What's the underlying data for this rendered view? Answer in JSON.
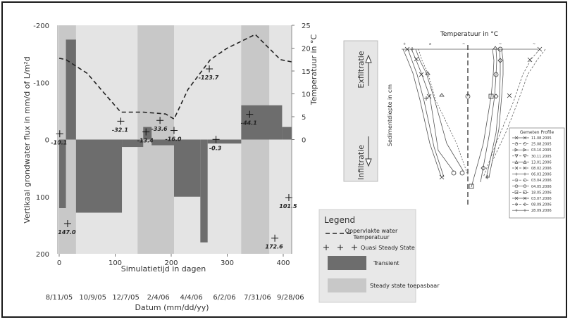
{
  "chart_data": [
    {
      "type": "bar",
      "xlabel": "Simulatietijd in dagen",
      "xlabel2": "Datum (mm/dd/yy)",
      "ylabel": "Vertikaal grondwater flux in mm/d of L/m²d",
      "y2label": "Temperatuur in °C",
      "xlim": [
        0,
        420
      ],
      "ylim": [
        -200,
        200
      ],
      "y_inverted": true,
      "y2lim": [
        0,
        25
      ],
      "xticks": [
        0,
        100,
        200,
        300,
        400
      ],
      "yticks": [
        -200,
        -100,
        0,
        100,
        200
      ],
      "y2ticks": [
        0,
        5,
        10,
        15,
        20,
        25
      ],
      "date_ticks": [
        {
          "x": 0,
          "label": "8/11/05"
        },
        {
          "x": 60,
          "label": "10/9/05"
        },
        {
          "x": 119,
          "label": "12/7/05"
        },
        {
          "x": 177,
          "label": "2/4/06"
        },
        {
          "x": 236,
          "label": "4/4/06"
        },
        {
          "x": 295,
          "label": "6/2/06"
        },
        {
          "x": 354,
          "label": "7/31/06"
        },
        {
          "x": 413,
          "label": "9/28/06"
        }
      ],
      "steady_state_bands": [
        [
          0,
          30
        ],
        [
          140,
          205
        ],
        [
          325,
          375
        ]
      ],
      "transient_bars": [
        {
          "x0": 0,
          "x1": 12,
          "y": 120
        },
        {
          "x0": 12,
          "x1": 30,
          "y": -175
        },
        {
          "x0": 30,
          "x1": 75,
          "y": 0
        },
        {
          "x0": 75,
          "x1": 75,
          "y": 0
        },
        {
          "x0": 30,
          "x1": 112,
          "y": 128
        },
        {
          "x0": 112,
          "x1": 150,
          "y": 13
        },
        {
          "x0": 150,
          "x1": 165,
          "y": -22
        },
        {
          "x0": 165,
          "x1": 205,
          "y": 10
        },
        {
          "x0": 205,
          "x1": 252,
          "y": 100
        },
        {
          "x0": 252,
          "x1": 265,
          "y": 180
        },
        {
          "x0": 265,
          "x1": 325,
          "y": 7
        },
        {
          "x0": 325,
          "x1": 398,
          "y": -60
        },
        {
          "x0": 398,
          "x1": 415,
          "y": -22
        }
      ],
      "temperature_series": {
        "name": "Oppervlakte water Temperatuur",
        "x": [
          0,
          12,
          50,
          85,
          110,
          150,
          190,
          205,
          230,
          270,
          300,
          350,
          395,
          415
        ],
        "y": [
          17.8,
          17.5,
          14.5,
          9.5,
          6,
          6,
          5.6,
          4.5,
          11,
          17.5,
          20,
          23,
          17.5,
          17
        ]
      },
      "quasi_steady_points": [
        {
          "x": 1,
          "y": -10.1,
          "label": "-10.1"
        },
        {
          "x": 15,
          "y": 147.0,
          "label": "147.0"
        },
        {
          "x": 110,
          "y": -32.1,
          "label": "-32.1"
        },
        {
          "x": 155,
          "y": -13.4,
          "label": "-13.4"
        },
        {
          "x": 180,
          "y": -33.6,
          "label": "-33.6"
        },
        {
          "x": 205,
          "y": -16.0,
          "label": "-16.0"
        },
        {
          "x": 268,
          "y": -123.7,
          "label": "-123.7"
        },
        {
          "x": 280,
          "y": -0.3,
          "label": "-0.3"
        },
        {
          "x": 340,
          "y": -44.1,
          "label": "-44.1"
        },
        {
          "x": 385,
          "y": 172.6,
          "label": "172.6"
        },
        {
          "x": 410,
          "y": 101.5,
          "label": "101.5"
        }
      ],
      "legend": {
        "title": "Legend",
        "items": [
          {
            "label": "Oppervlakte water Temperatuur",
            "kind": "dashed-line"
          },
          {
            "label": "Quasi Steady State",
            "kind": "plus-markers"
          },
          {
            "label": "Transient",
            "kind": "dark-box"
          },
          {
            "label": "Steady state toepasbaar",
            "kind": "light-box"
          }
        ]
      }
    },
    {
      "type": "line",
      "title": "Temperatuur in °C",
      "ylabel": "Sedimentdiepte in cm",
      "arrow_up_label": "Exfiltratie",
      "arrow_down_label": "Infiltratie",
      "legend_title": "Gemeten Profile",
      "series_names": [
        "11.08.2005",
        "25.08.2005",
        "03.10.2005",
        "30.11.2005",
        "13.01.2006",
        "08.02.2006",
        "06.03.2006",
        "03.04.2006",
        "04.05.2006",
        "18.05.2006",
        "03.07.2006",
        "08.09.2006",
        "28.09.2006"
      ]
    }
  ],
  "colors": {
    "steady_band": "#c8c8c8",
    "plot_bg": "#e4e4e4",
    "transient": "#6d6d6d",
    "legend_bg": "#e8e8e8"
  }
}
